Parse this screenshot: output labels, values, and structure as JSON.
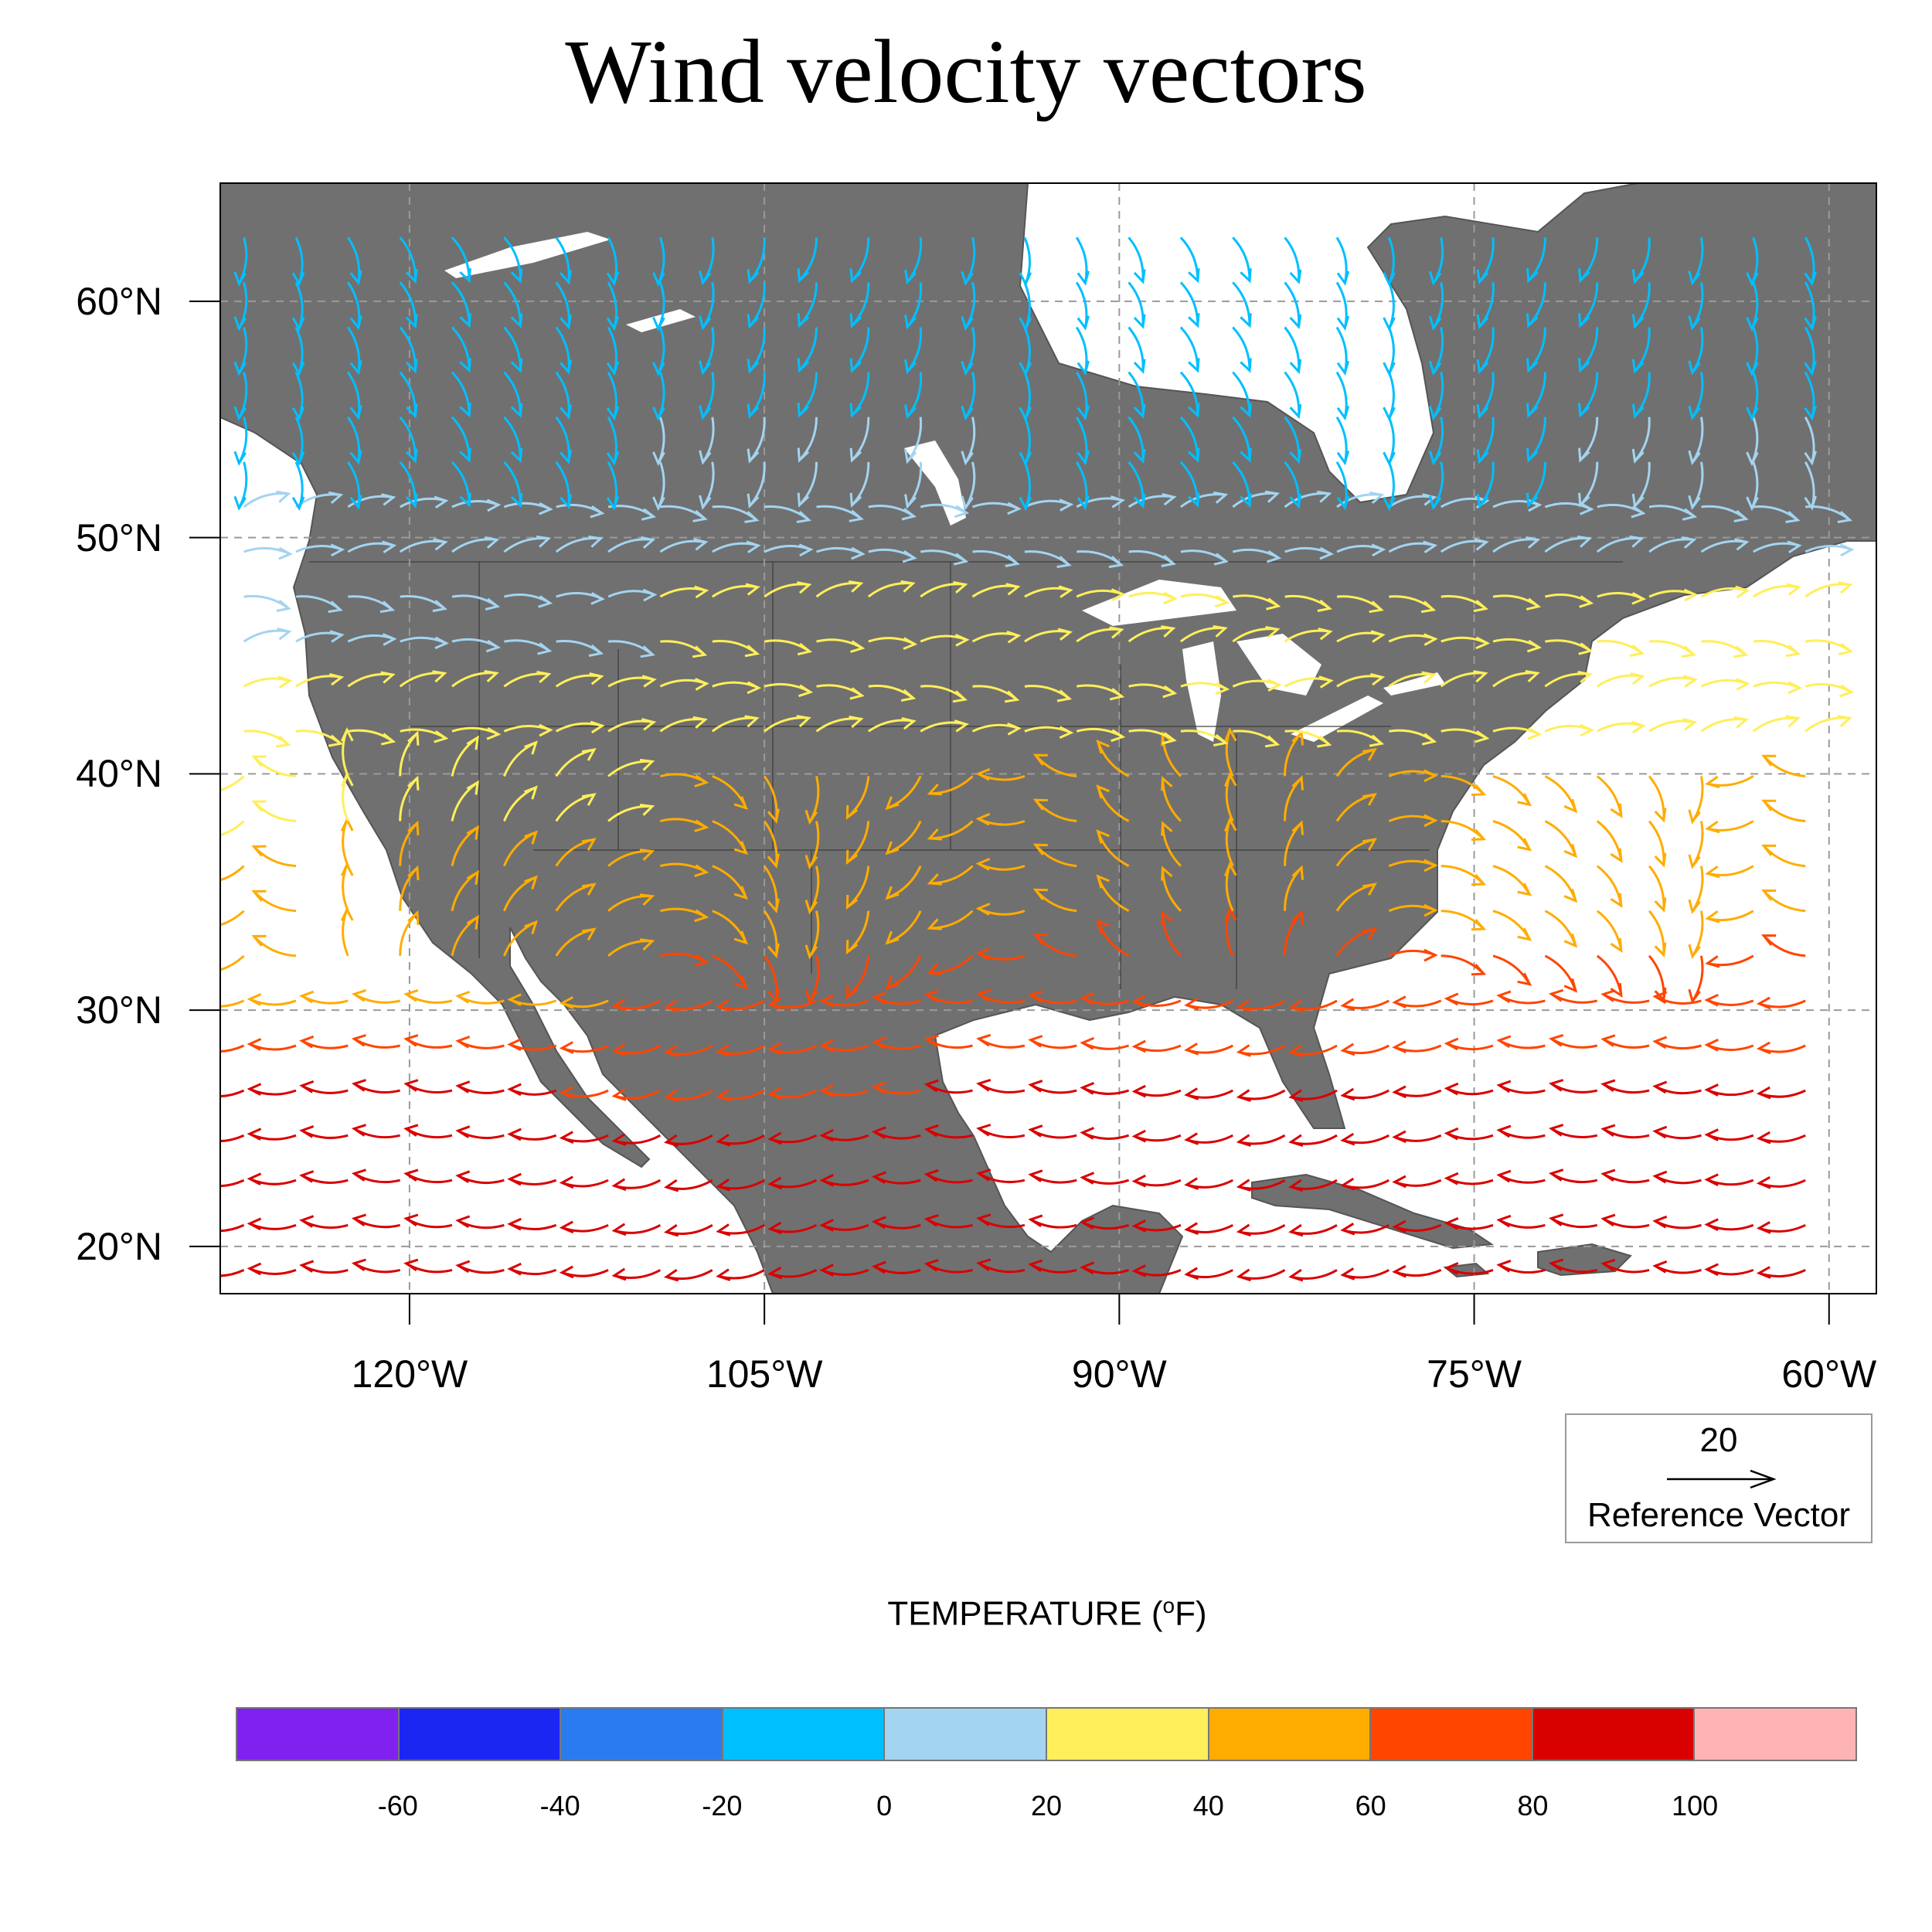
{
  "title": "Wind velocity vectors",
  "map": {
    "projection": "cylindrical equidistant",
    "region": "North America",
    "extent": {
      "lon_min": -128,
      "lon_max": -58,
      "lat_min": 18,
      "lat_max": 65
    },
    "land_color": "#707070",
    "ocean_color": "#ffffff",
    "gridlines": "dashed gray",
    "lat_ticks": [
      {
        "value": 20,
        "label": "20°N"
      },
      {
        "value": 30,
        "label": "30°N"
      },
      {
        "value": 40,
        "label": "40°N"
      },
      {
        "value": 50,
        "label": "50°N"
      },
      {
        "value": 60,
        "label": "60°N"
      }
    ],
    "lon_ticks": [
      {
        "value": -120,
        "label": "120°W"
      },
      {
        "value": -105,
        "label": "105°W"
      },
      {
        "value": -90,
        "label": "90°W"
      },
      {
        "value": -75,
        "label": "75°W"
      },
      {
        "value": -60,
        "label": "60°W"
      }
    ],
    "vector_field": "curly wind vectors colored by temperature"
  },
  "reference_vector": {
    "magnitude": "20",
    "label": "Reference Vector"
  },
  "colorbar": {
    "title_prefix": "TEMPERATURE (",
    "title_sup": "o",
    "title_suffix": "F)",
    "colors": [
      "#8021f0",
      "#1c26f2",
      "#2b7bf0",
      "#00bfff",
      "#a3d4f0",
      "#ffef5a",
      "#ffac00",
      "#ff4500",
      "#d90000",
      "#ffb4b4"
    ],
    "labels": [
      "-60",
      "-40",
      "-20",
      "0",
      "20",
      "40",
      "60",
      "80",
      "100"
    ]
  }
}
